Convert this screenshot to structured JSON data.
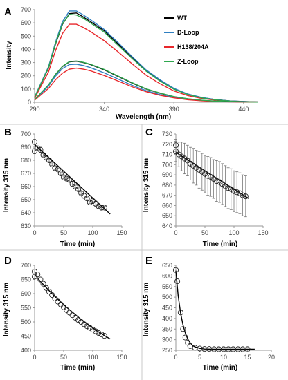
{
  "chart_data": [
    {
      "id": "A",
      "type": "line",
      "panel_label": "A",
      "xlabel": "Wavelength (nm)",
      "ylabel": "Intensity",
      "xlim": [
        290,
        450
      ],
      "ylim": [
        0,
        700
      ],
      "xticks": [
        290,
        340,
        390,
        440
      ],
      "yticks": [
        0,
        100,
        200,
        300,
        400,
        500,
        600,
        700
      ],
      "legend": "top-right",
      "legend_entries": [
        {
          "label": "WT",
          "color": "#000000"
        },
        {
          "label": "D-Loop",
          "color": "#2f7fc1"
        },
        {
          "label": "H138/204A",
          "color": "#e8272b"
        },
        {
          "label": "Z-Loop",
          "color": "#2fa84f"
        }
      ],
      "x": [
        290,
        300,
        305,
        310,
        315,
        320,
        325,
        330,
        340,
        350,
        360,
        370,
        380,
        390,
        400,
        410,
        420,
        430,
        440,
        450
      ],
      "series": [
        {
          "label": "WT",
          "color": "#000000",
          "values": [
            35,
            260,
            440,
            590,
            670,
            675,
            645,
            610,
            540,
            440,
            340,
            240,
            165,
            100,
            60,
            35,
            20,
            10,
            5,
            2
          ]
        },
        {
          "label": "D-Loop",
          "color": "#2f7fc1",
          "values": [
            40,
            270,
            455,
            610,
            690,
            690,
            660,
            625,
            550,
            450,
            345,
            245,
            170,
            105,
            62,
            36,
            20,
            10,
            5,
            2
          ]
        },
        {
          "label": "H138/204A",
          "color": "#e8272b",
          "values": [
            30,
            230,
            390,
            520,
            590,
            590,
            565,
            535,
            465,
            380,
            290,
            205,
            140,
            85,
            50,
            28,
            15,
            8,
            4,
            2
          ]
        },
        {
          "label": "Z-Loop",
          "color": "#2fa84f",
          "values": [
            38,
            262,
            445,
            595,
            665,
            660,
            635,
            600,
            530,
            430,
            330,
            235,
            160,
            98,
            58,
            33,
            18,
            9,
            4,
            2
          ]
        },
        {
          "label": "WT",
          "color": "#000000",
          "values": [
            20,
            130,
            210,
            270,
            305,
            310,
            300,
            285,
            245,
            195,
            145,
            100,
            68,
            42,
            25,
            14,
            8,
            4,
            2,
            1
          ]
        },
        {
          "label": "D-Loop",
          "color": "#2f7fc1",
          "values": [
            18,
            122,
            198,
            255,
            285,
            288,
            278,
            262,
            222,
            175,
            128,
            88,
            58,
            36,
            21,
            12,
            7,
            3,
            2,
            1
          ]
        },
        {
          "label": "H138/204A",
          "color": "#e8272b",
          "values": [
            15,
            105,
            170,
            220,
            250,
            258,
            250,
            238,
            202,
            160,
            117,
            80,
            53,
            33,
            19,
            11,
            6,
            3,
            1,
            1
          ]
        },
        {
          "label": "Z-Loop",
          "color": "#2fa84f",
          "values": [
            20,
            132,
            212,
            272,
            308,
            312,
            302,
            288,
            248,
            198,
            148,
            102,
            70,
            43,
            26,
            15,
            8,
            4,
            2,
            1
          ]
        }
      ]
    },
    {
      "id": "B",
      "type": "scatter",
      "panel_label": "B",
      "xlabel": "Time (min)",
      "ylabel": "Intensity 315 nm",
      "xlim": [
        0,
        150
      ],
      "ylim": [
        630,
        700
      ],
      "xticks": [
        0,
        50,
        100,
        150
      ],
      "yticks": [
        630,
        640,
        650,
        660,
        670,
        680,
        690,
        700
      ],
      "x": [
        0,
        0,
        5,
        10,
        15,
        20,
        25,
        30,
        35,
        40,
        45,
        50,
        55,
        60,
        65,
        70,
        75,
        80,
        85,
        90,
        95,
        100,
        105,
        110,
        115,
        120
      ],
      "y": [
        694,
        687,
        689,
        688,
        684,
        682,
        680,
        677,
        674,
        673,
        670,
        667,
        666,
        665,
        662,
        660,
        658,
        655,
        653,
        651,
        648,
        649,
        647,
        645,
        644,
        644
      ],
      "error": [
        2,
        2,
        2,
        2,
        1,
        1,
        1,
        1,
        1,
        1,
        1,
        1,
        1,
        1,
        2,
        1,
        1,
        1,
        2,
        1,
        1,
        2,
        2,
        2,
        2,
        1
      ],
      "fit": {
        "x": [
          0,
          130
        ],
        "y": [
          692,
          639
        ]
      }
    },
    {
      "id": "C",
      "type": "scatter",
      "panel_label": "C",
      "xlabel": "Time (min)",
      "ylabel": "Intensity 315 nm",
      "xlim": [
        0,
        150
      ],
      "ylim": [
        640,
        730
      ],
      "xticks": [
        0,
        50,
        100,
        150
      ],
      "yticks": [
        640,
        650,
        660,
        670,
        680,
        690,
        700,
        710,
        720,
        730
      ],
      "x": [
        0,
        0,
        5,
        10,
        15,
        20,
        25,
        30,
        35,
        40,
        45,
        50,
        55,
        60,
        65,
        70,
        75,
        80,
        85,
        90,
        95,
        100,
        105,
        110,
        115,
        120
      ],
      "y": [
        719,
        713,
        710,
        708,
        706,
        704,
        701,
        699,
        697,
        695,
        693,
        691,
        689,
        688,
        686,
        684,
        683,
        681,
        679,
        677,
        676,
        674,
        673,
        672,
        670,
        669
      ],
      "error": [
        6,
        10,
        12,
        14,
        15,
        15,
        16,
        17,
        17,
        18,
        18,
        18,
        19,
        19,
        19,
        20,
        20,
        20,
        20,
        20,
        20,
        20,
        20,
        20,
        20,
        20
      ],
      "fit": {
        "x": [
          0,
          125
        ],
        "y": [
          712,
          667
        ]
      }
    },
    {
      "id": "D",
      "type": "scatter",
      "panel_label": "D",
      "xlabel": "Time (min)",
      "ylabel": "Intensity 315 nm",
      "xlim": [
        0,
        150
      ],
      "ylim": [
        400,
        700
      ],
      "xticks": [
        0,
        50,
        100,
        150
      ],
      "yticks": [
        400,
        450,
        500,
        550,
        600,
        650,
        700
      ],
      "x": [
        0,
        0,
        5,
        10,
        15,
        20,
        25,
        30,
        35,
        40,
        45,
        50,
        55,
        60,
        65,
        70,
        75,
        80,
        85,
        90,
        95,
        100,
        105,
        110,
        115,
        120
      ],
      "y": [
        678,
        660,
        668,
        650,
        635,
        620,
        607,
        595,
        583,
        572,
        562,
        552,
        542,
        533,
        524,
        515,
        507,
        500,
        492,
        485,
        479,
        473,
        467,
        461,
        456,
        451
      ],
      "fit": {
        "x": [
          0,
          10,
          20,
          30,
          40,
          50,
          60,
          70,
          80,
          90,
          100,
          110,
          120,
          130
        ],
        "y": [
          668,
          643,
          621,
          600,
          580,
          561,
          543,
          526,
          509,
          494,
          479,
          465,
          452,
          440
        ]
      }
    },
    {
      "id": "E",
      "type": "scatter",
      "panel_label": "E",
      "xlabel": "Time (min)",
      "ylabel": "Intensity 315 nm",
      "xlim": [
        0,
        20
      ],
      "ylim": [
        250,
        650
      ],
      "xticks": [
        0,
        5,
        10,
        15,
        20
      ],
      "yticks": [
        250,
        300,
        350,
        400,
        450,
        500,
        550,
        600,
        650
      ],
      "x": [
        0,
        0.3,
        1,
        1.5,
        2,
        2.5,
        3,
        4,
        5,
        6,
        7,
        8,
        9,
        10,
        11,
        12,
        13,
        14,
        15
      ],
      "y": [
        628,
        575,
        428,
        350,
        310,
        285,
        270,
        262,
        258,
        256,
        256,
        255,
        255,
        255,
        255,
        255,
        255,
        255,
        255
      ],
      "fit": {
        "x": [
          0,
          0.5,
          1,
          1.5,
          2,
          2.5,
          3,
          3.5,
          4,
          5,
          6,
          8,
          10,
          12,
          14,
          16.5
        ],
        "y": [
          625,
          505,
          425,
          368,
          330,
          302,
          285,
          272,
          266,
          259,
          256,
          255,
          255,
          255,
          255,
          255
        ]
      }
    }
  ]
}
